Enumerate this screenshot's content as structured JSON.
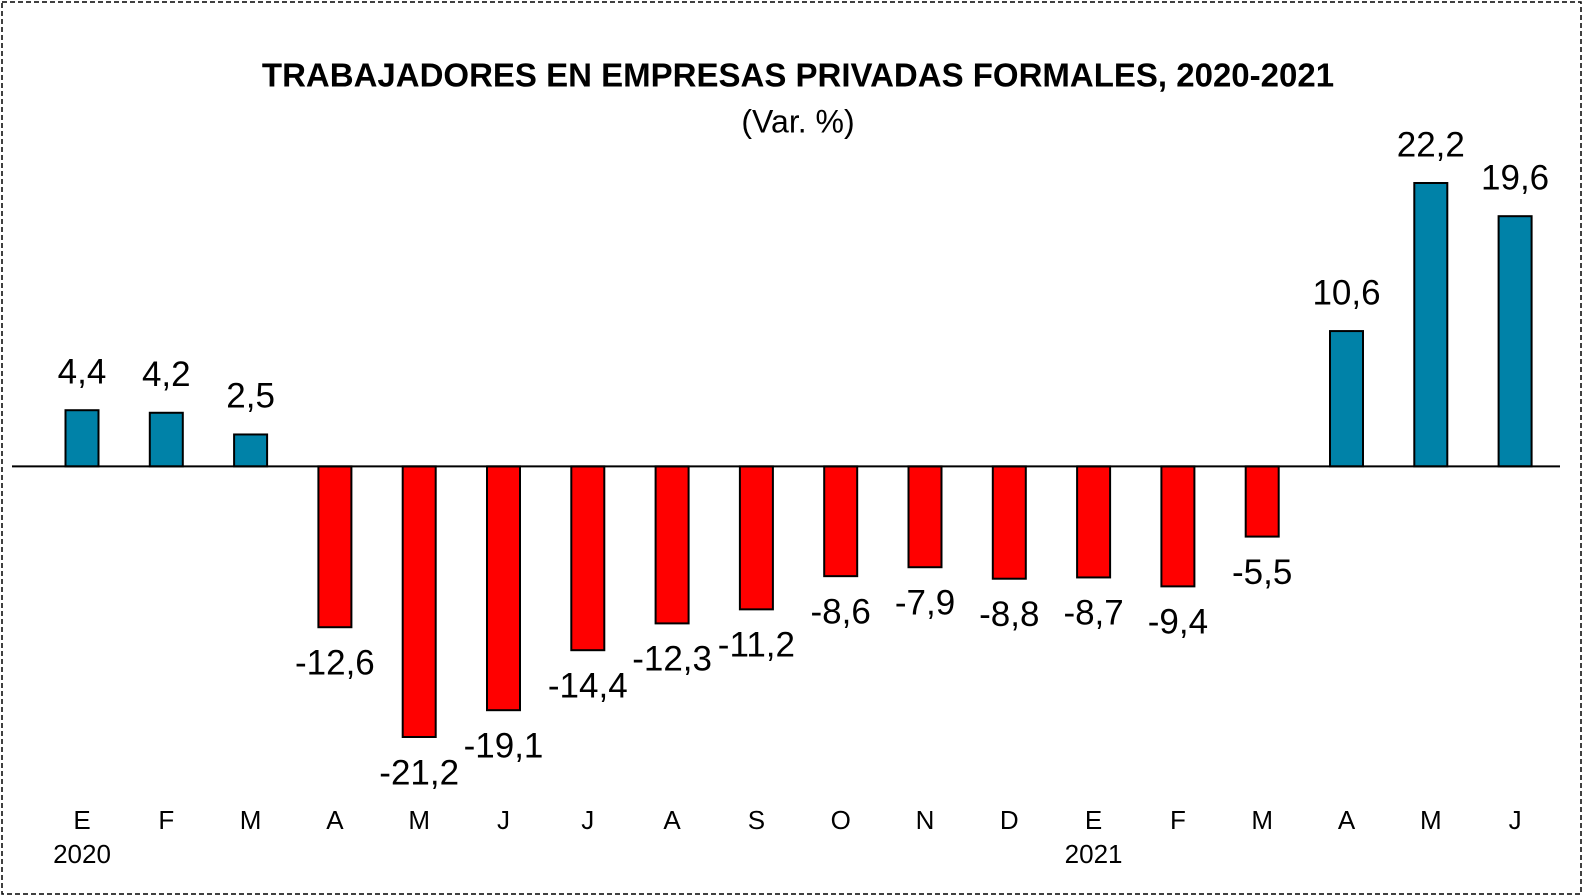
{
  "chart_data": {
    "type": "bar",
    "title": "TRABAJADORES EN EMPRESAS PRIVADAS FORMALES, 2020-2021",
    "subtitle": "(Var. %)",
    "categories": [
      "E",
      "F",
      "M",
      "A",
      "M",
      "J",
      "J",
      "A",
      "S",
      "O",
      "N",
      "D",
      "E",
      "F",
      "M",
      "A",
      "M",
      "J"
    ],
    "category_years": [
      "2020",
      null,
      null,
      null,
      null,
      null,
      null,
      null,
      null,
      null,
      null,
      null,
      "2021",
      null,
      null,
      null,
      null,
      null
    ],
    "values": [
      4.4,
      4.2,
      2.5,
      -12.6,
      -21.2,
      -19.1,
      -14.4,
      -12.3,
      -11.2,
      -8.6,
      -7.9,
      -8.8,
      -8.7,
      -9.4,
      -5.5,
      10.6,
      22.2,
      19.6
    ],
    "value_labels": [
      "4,4",
      "4,2",
      "2,5",
      "-12,6",
      "-21,2",
      "-19,1",
      "-14,4",
      "-12,3",
      "-11,2",
      "-8,6",
      "-7,9",
      "-8,8",
      "-8,7",
      "-9,4",
      "-5,5",
      "10,6",
      "22,2",
      "19,6"
    ],
    "positive_color": "#0082a8",
    "negative_color": "#ff0000"
  }
}
